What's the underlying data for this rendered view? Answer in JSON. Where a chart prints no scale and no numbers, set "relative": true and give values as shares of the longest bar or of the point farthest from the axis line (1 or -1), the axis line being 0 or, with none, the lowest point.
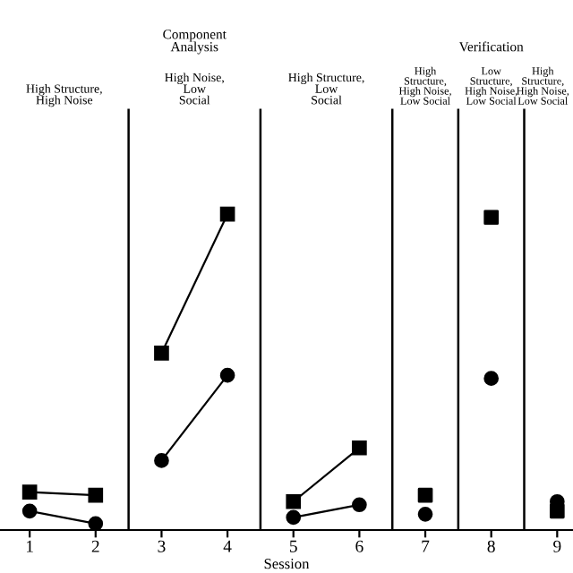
{
  "chart_data": {
    "type": "line",
    "relative": true,
    "xlabel": "Session",
    "xlim": [
      0.55,
      9.24
    ],
    "xticks": [
      1,
      2,
      3,
      4,
      5,
      6,
      7,
      8,
      9
    ],
    "series": [
      {
        "color": "#000000",
        "marker": "square",
        "x": [
          1,
          2,
          3,
          4,
          5,
          6
        ],
        "values": [
          0.12,
          0.11,
          0.56,
          1,
          0.09,
          0.26
        ]
      },
      {
        "color": "#000000",
        "marker": "circle",
        "x": [
          1,
          2,
          3,
          4,
          5,
          6
        ],
        "values": [
          0.06,
          0.02,
          0.22,
          0.49,
          0.04,
          0.08
        ]
      },
      {
        "type": "scatter",
        "color": "#000000",
        "marker": "square",
        "x": [
          7,
          8,
          9
        ],
        "values": [
          0.11,
          0.99,
          0.06
        ]
      },
      {
        "type": "scatter",
        "color": "#000000",
        "marker": "circle",
        "x": [
          7,
          8,
          9
        ],
        "values": [
          0.05,
          0.48,
          0.09
        ]
      }
    ],
    "ref_lines": [
      {
        "axis": "x",
        "value": 2.5,
        "color": "#000000"
      },
      {
        "axis": "x",
        "value": 4.5,
        "color": "#000000"
      },
      {
        "axis": "x",
        "value": 6.5,
        "color": "#000000"
      },
      {
        "axis": "x",
        "value": 7.5,
        "color": "#000000"
      },
      {
        "axis": "x",
        "value": 8.5,
        "color": "#000000"
      }
    ],
    "annotations": [
      "Component\nAnalysis",
      "Verification",
      "High Structure,\nHigh Noise",
      "High Noise,\nLow\nSocial",
      "High Structure,\nLow\nSocial",
      "High\nStructure,\nHigh Noise,\nLow Social",
      "Low\nStructure,\nHigh Noise,\nLow Social",
      "High\nStructure,\nHigh Noise,\nLow Social"
    ],
    "grid": false,
    "legend": false,
    "line_style": "solid"
  }
}
